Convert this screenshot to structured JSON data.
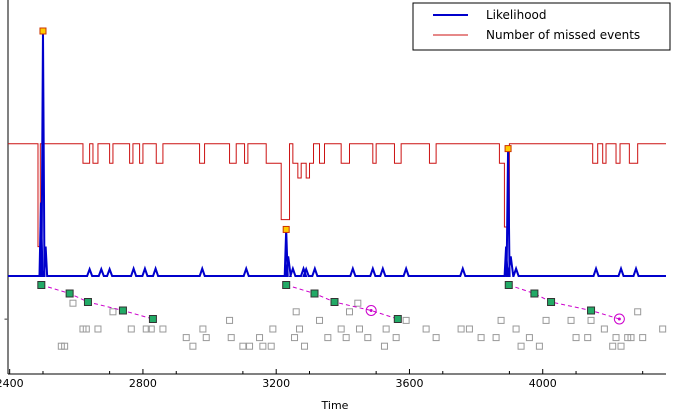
{
  "chart_data": {
    "type": "line",
    "xlabel": "Time",
    "ylabel": "",
    "xlim": [
      2395,
      4370
    ],
    "x_ticks": [
      2400,
      2800,
      3200,
      3600,
      4000
    ],
    "x_tick_labels": [
      "2400",
      "2800",
      "3200",
      "3600",
      "4000"
    ],
    "left_axis_stray_tick": "-",
    "legend": {
      "position": "top-right",
      "entries": [
        {
          "label": "Likelihood",
          "color": "#0000cc"
        },
        {
          "label": "Number of missed events",
          "color": "#cc1111"
        }
      ]
    },
    "series": [
      {
        "name": "Likelihood",
        "color": "#0000cc",
        "baseline": 0,
        "peaks": [
          {
            "x": 2500,
            "y": 100,
            "marker": true
          },
          {
            "x": 2494,
            "y": 30
          },
          {
            "x": 2508,
            "y": 12
          },
          {
            "x": 3230,
            "y": 19,
            "marker": true
          },
          {
            "x": 3236,
            "y": 8
          },
          {
            "x": 3896,
            "y": 52,
            "marker": true
          },
          {
            "x": 3890,
            "y": 12
          },
          {
            "x": 3904,
            "y": 8
          },
          {
            "x": 2640,
            "y": 2.8
          },
          {
            "x": 2675,
            "y": 2.8
          },
          {
            "x": 2700,
            "y": 2.8
          },
          {
            "x": 2772,
            "y": 3.0
          },
          {
            "x": 2806,
            "y": 3.0
          },
          {
            "x": 2838,
            "y": 3.0
          },
          {
            "x": 2978,
            "y": 3.0
          },
          {
            "x": 3110,
            "y": 3.0
          },
          {
            "x": 3250,
            "y": 3.0
          },
          {
            "x": 3282,
            "y": 3.0
          },
          {
            "x": 3290,
            "y": 2.8
          },
          {
            "x": 3316,
            "y": 3.0
          },
          {
            "x": 3430,
            "y": 3.0
          },
          {
            "x": 3490,
            "y": 3.0
          },
          {
            "x": 3520,
            "y": 3.0
          },
          {
            "x": 3590,
            "y": 3.0
          },
          {
            "x": 3760,
            "y": 3.0
          },
          {
            "x": 3920,
            "y": 3.0
          },
          {
            "x": 4160,
            "y": 3.0
          },
          {
            "x": 4235,
            "y": 3.0
          },
          {
            "x": 4280,
            "y": 3.0
          }
        ]
      },
      {
        "name": "Number of missed events",
        "color": "#cc1111",
        "points": [
          [
            2395,
            54
          ],
          [
            2485,
            54
          ],
          [
            2485,
            12
          ],
          [
            2492,
            12
          ],
          [
            2492,
            54
          ],
          [
            2620,
            54
          ],
          [
            2620,
            46
          ],
          [
            2640,
            46
          ],
          [
            2640,
            54
          ],
          [
            2650,
            54
          ],
          [
            2650,
            46
          ],
          [
            2665,
            46
          ],
          [
            2665,
            54
          ],
          [
            2700,
            54
          ],
          [
            2700,
            46
          ],
          [
            2710,
            46
          ],
          [
            2710,
            54
          ],
          [
            2760,
            54
          ],
          [
            2760,
            46
          ],
          [
            2770,
            46
          ],
          [
            2770,
            54
          ],
          [
            2790,
            54
          ],
          [
            2790,
            46
          ],
          [
            2800,
            46
          ],
          [
            2800,
            54
          ],
          [
            2840,
            54
          ],
          [
            2840,
            46
          ],
          [
            2860,
            46
          ],
          [
            2860,
            54
          ],
          [
            2970,
            54
          ],
          [
            2970,
            46
          ],
          [
            2985,
            46
          ],
          [
            2985,
            54
          ],
          [
            3060,
            54
          ],
          [
            3060,
            46
          ],
          [
            3080,
            46
          ],
          [
            3080,
            54
          ],
          [
            3105,
            54
          ],
          [
            3105,
            46
          ],
          [
            3115,
            46
          ],
          [
            3115,
            54
          ],
          [
            3170,
            54
          ],
          [
            3170,
            46
          ],
          [
            3215,
            46
          ],
          [
            3215,
            23
          ],
          [
            3240,
            23
          ],
          [
            3240,
            54
          ],
          [
            3250,
            54
          ],
          [
            3250,
            46
          ],
          [
            3265,
            46
          ],
          [
            3265,
            40
          ],
          [
            3275,
            40
          ],
          [
            3275,
            46
          ],
          [
            3290,
            46
          ],
          [
            3290,
            40
          ],
          [
            3300,
            40
          ],
          [
            3300,
            46
          ],
          [
            3312,
            46
          ],
          [
            3312,
            54
          ],
          [
            3330,
            54
          ],
          [
            3330,
            46
          ],
          [
            3345,
            46
          ],
          [
            3345,
            54
          ],
          [
            3395,
            54
          ],
          [
            3395,
            46
          ],
          [
            3420,
            46
          ],
          [
            3420,
            54
          ],
          [
            3490,
            54
          ],
          [
            3490,
            46
          ],
          [
            3500,
            46
          ],
          [
            3500,
            54
          ],
          [
            3555,
            54
          ],
          [
            3555,
            46
          ],
          [
            3575,
            46
          ],
          [
            3575,
            54
          ],
          [
            3660,
            54
          ],
          [
            3660,
            46
          ],
          [
            3680,
            46
          ],
          [
            3680,
            54
          ],
          [
            3870,
            54
          ],
          [
            3870,
            46
          ],
          [
            3885,
            46
          ],
          [
            3885,
            20
          ],
          [
            3900,
            20
          ],
          [
            3900,
            54
          ],
          [
            4150,
            54
          ],
          [
            4150,
            46
          ],
          [
            4165,
            46
          ],
          [
            4165,
            54
          ],
          [
            4180,
            54
          ],
          [
            4180,
            46
          ],
          [
            4190,
            46
          ],
          [
            4190,
            54
          ],
          [
            4220,
            54
          ],
          [
            4220,
            46
          ],
          [
            4232,
            46
          ],
          [
            4232,
            54
          ],
          [
            4260,
            54
          ],
          [
            4260,
            46
          ],
          [
            4285,
            46
          ],
          [
            4285,
            54
          ],
          [
            4370,
            54
          ]
        ]
      }
    ],
    "detected_sequences": [
      {
        "color": "#cc00cc",
        "points": [
          [
            2495,
            0
          ],
          [
            2580,
            1
          ],
          [
            2635,
            2
          ],
          [
            2740,
            3
          ],
          [
            2830,
            4
          ]
        ],
        "circled": []
      },
      {
        "color": "#cc00cc",
        "points": [
          [
            3230,
            0
          ],
          [
            3315,
            1
          ],
          [
            3375,
            2
          ],
          [
            3485,
            3
          ],
          [
            3565,
            4
          ]
        ],
        "circled": [
          3
        ]
      },
      {
        "color": "#cc00cc",
        "points": [
          [
            3898,
            0
          ],
          [
            3975,
            1
          ],
          [
            4025,
            2
          ],
          [
            4145,
            3
          ],
          [
            4230,
            4
          ]
        ],
        "circled": [
          4
        ]
      }
    ],
    "background_events": [
      [
        2590,
        2
      ],
      [
        2710,
        3
      ],
      [
        2765,
        5
      ],
      [
        2825,
        5
      ],
      [
        2860,
        5
      ],
      [
        2930,
        6
      ],
      [
        2950,
        7
      ],
      [
        2980,
        5
      ],
      [
        2990,
        6
      ],
      [
        3060,
        4
      ],
      [
        3100,
        7
      ],
      [
        3120,
        7
      ],
      [
        3150,
        6
      ],
      [
        3160,
        7
      ],
      [
        3185,
        7
      ],
      [
        3260,
        3
      ],
      [
        3255,
        6
      ],
      [
        3270,
        5
      ],
      [
        3285,
        7
      ],
      [
        3330,
        4
      ],
      [
        3355,
        6
      ],
      [
        3395,
        5
      ],
      [
        3410,
        6
      ],
      [
        3420,
        3
      ],
      [
        3445,
        2
      ],
      [
        3450,
        5
      ],
      [
        3475,
        6
      ],
      [
        3525,
        7
      ],
      [
        3530,
        5
      ],
      [
        3560,
        6
      ],
      [
        3590,
        4
      ],
      [
        3650,
        5
      ],
      [
        3680,
        6
      ],
      [
        3755,
        5
      ],
      [
        3780,
        5
      ],
      [
        3815,
        6
      ],
      [
        3860,
        6
      ],
      [
        3875,
        4
      ],
      [
        3920,
        5
      ],
      [
        3935,
        7
      ],
      [
        3960,
        6
      ],
      [
        3990,
        7
      ],
      [
        4010,
        4
      ],
      [
        4085,
        4
      ],
      [
        4100,
        6
      ],
      [
        4135,
        6
      ],
      [
        4145,
        4
      ],
      [
        4185,
        5
      ],
      [
        4210,
        7
      ],
      [
        4220,
        6
      ],
      [
        4235,
        7
      ],
      [
        4255,
        6
      ],
      [
        4265,
        6
      ],
      [
        4285,
        3
      ],
      [
        4300,
        6
      ],
      [
        4360,
        5
      ],
      [
        2555,
        7
      ],
      [
        2565,
        7
      ],
      [
        2620,
        5
      ],
      [
        2630,
        5
      ],
      [
        2665,
        5
      ],
      [
        2810,
        5
      ],
      [
        3065,
        6
      ],
      [
        3190,
        5
      ]
    ]
  }
}
